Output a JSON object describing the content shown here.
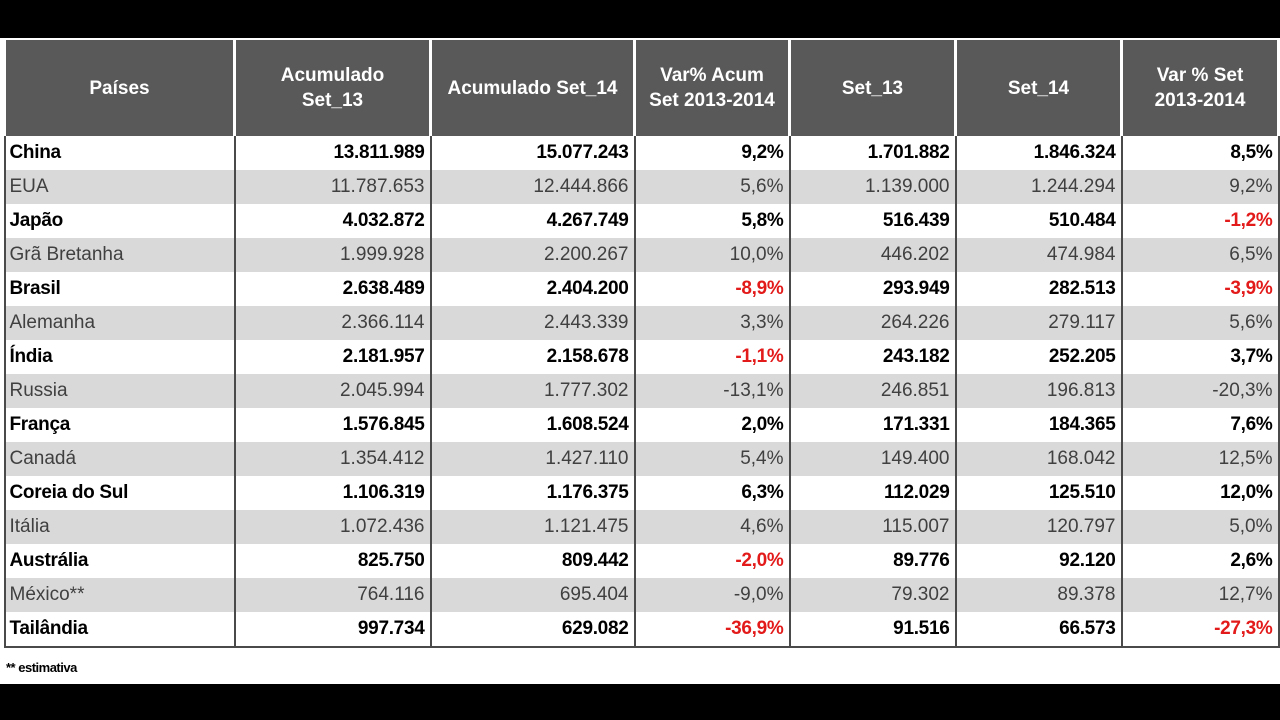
{
  "table": {
    "headers": [
      "Países",
      "Acumulado\nSet_13",
      "Acumulado Set_14",
      "Var% Acum\nSet 2013-2014",
      "Set_13",
      "Set_14",
      "Var %    Set\n2013-2014"
    ],
    "rows": [
      [
        "China",
        "13.811.989",
        "15.077.243",
        "9,2%",
        "1.701.882",
        "1.846.324",
        "8,5%"
      ],
      [
        "EUA",
        "11.787.653",
        "12.444.866",
        "5,6%",
        "1.139.000",
        "1.244.294",
        "9,2%"
      ],
      [
        "Japão",
        "4.032.872",
        "4.267.749",
        "5,8%",
        "516.439",
        "510.484",
        "-1,2%"
      ],
      [
        "Grã Bretanha",
        "1.999.928",
        "2.200.267",
        "10,0%",
        "446.202",
        "474.984",
        "6,5%"
      ],
      [
        "Brasil",
        "2.638.489",
        "2.404.200",
        "-8,9%",
        "293.949",
        "282.513",
        "-3,9%"
      ],
      [
        "Alemanha",
        "2.366.114",
        "2.443.339",
        "3,3%",
        "264.226",
        "279.117",
        "5,6%"
      ],
      [
        "Índia",
        "2.181.957",
        "2.158.678",
        "-1,1%",
        "243.182",
        "252.205",
        "3,7%"
      ],
      [
        "Russia",
        "2.045.994",
        "1.777.302",
        "-13,1%",
        "246.851",
        "196.813",
        "-20,3%"
      ],
      [
        "França",
        "1.576.845",
        "1.608.524",
        "2,0%",
        "171.331",
        "184.365",
        "7,6%"
      ],
      [
        "Canadá",
        "1.354.412",
        "1.427.110",
        "5,4%",
        "149.400",
        "168.042",
        "12,5%"
      ],
      [
        "Coreia do Sul",
        "1.106.319",
        "1.176.375",
        "6,3%",
        "112.029",
        "125.510",
        "12,0%"
      ],
      [
        "Itália",
        "1.072.436",
        "1.121.475",
        "4,6%",
        "115.007",
        "120.797",
        "5,0%"
      ],
      [
        "Austrália",
        "825.750",
        "809.442",
        "-2,0%",
        "89.776",
        "92.120",
        "2,6%"
      ],
      [
        "México**",
        "764.116",
        "695.404",
        "-9,0%",
        "79.302",
        "89.378",
        "12,7%"
      ],
      [
        "Tailândia",
        "997.734",
        "629.082",
        "-36,9%",
        "91.516",
        "66.573",
        "-27,3%"
      ]
    ]
  },
  "footnote": "** estimativa",
  "colors": {
    "header_bg": "#595959",
    "even_row_bg": "#d9d9d9",
    "negative_text": "#e31a1a",
    "frame": "#000000"
  }
}
